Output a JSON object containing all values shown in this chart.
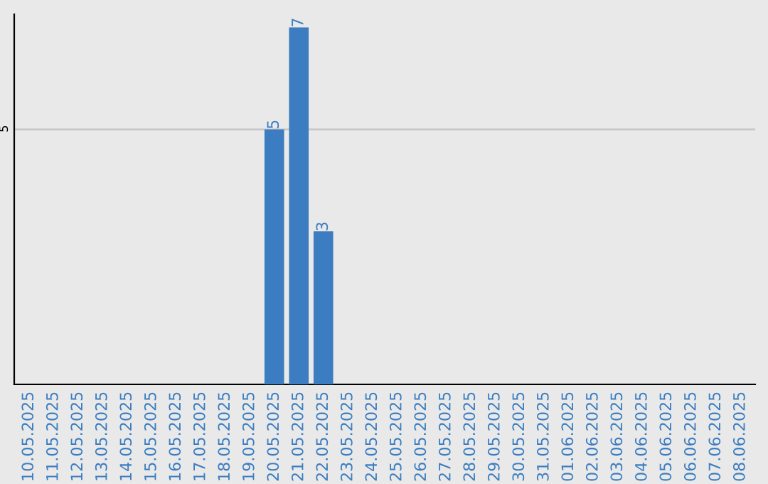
{
  "chart_data": {
    "type": "bar",
    "categories": [
      "10.05.2025",
      "11.05.2025",
      "12.05.2025",
      "13.05.2025",
      "14.05.2025",
      "15.05.2025",
      "16.05.2025",
      "17.05.2025",
      "18.05.2025",
      "19.05.2025",
      "20.05.2025",
      "21.05.2025",
      "22.05.2025",
      "23.05.2025",
      "24.05.2025",
      "25.05.2025",
      "26.05.2025",
      "27.05.2025",
      "28.05.2025",
      "29.05.2025",
      "30.05.2025",
      "31.05.2025",
      "01.06.2025",
      "02.06.2025",
      "03.06.2025",
      "04.06.2025",
      "05.06.2025",
      "06.06.2025",
      "07.06.2025",
      "08.06.2025"
    ],
    "values": [
      0,
      0,
      0,
      0,
      0,
      0,
      0,
      0,
      0,
      0,
      5,
      7,
      3,
      0,
      0,
      0,
      0,
      0,
      0,
      0,
      0,
      0,
      0,
      0,
      0,
      0,
      0,
      0,
      0,
      0
    ],
    "value_labels": [
      null,
      null,
      null,
      null,
      null,
      null,
      null,
      null,
      null,
      null,
      "5",
      "7",
      "3",
      null,
      null,
      null,
      null,
      null,
      null,
      null,
      null,
      null,
      null,
      null,
      null,
      null,
      null,
      null,
      null,
      null
    ],
    "color": "#3b7dc0",
    "ylim": [
      0,
      7.26
    ],
    "yticks": [
      5
    ],
    "grid": "y"
  }
}
